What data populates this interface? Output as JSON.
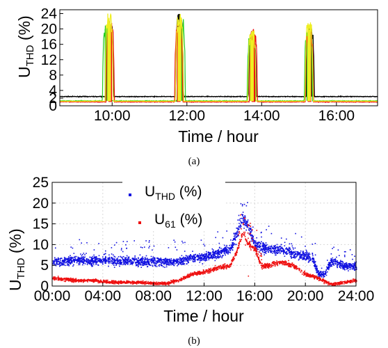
{
  "chart_data": [
    {
      "type": "line",
      "panel_label": "(a)",
      "xlabel": "Time / hour",
      "ylabel_main": "U",
      "ylabel_sub": "THD",
      "ylabel_unit": " (%)",
      "xlim": [
        8.6,
        17.1
      ],
      "ylim": [
        0,
        25
      ],
      "yticks": [
        0,
        2,
        4,
        8,
        12,
        16,
        20,
        24
      ],
      "xticks": [
        {
          "value": 10,
          "label": "10:00"
        },
        {
          "value": 12,
          "label": "12:00"
        },
        {
          "value": 14,
          "label": "14:00"
        },
        {
          "value": 16,
          "label": "16:00"
        }
      ],
      "series": [
        {
          "color": "#000000",
          "baseline": 2.4,
          "peaks": [
            {
              "t": 9.93,
              "peak": 22
            },
            {
              "t": 11.8,
              "peak": 24
            },
            {
              "t": 13.75,
              "peak": 20
            },
            {
              "t": 15.3,
              "peak": 21
            }
          ]
        },
        {
          "color": "#22cc22",
          "baseline": 1.3,
          "peaks": [
            {
              "t": 9.85,
              "peak": 21
            },
            {
              "t": 11.85,
              "peak": 23
            },
            {
              "t": 13.72,
              "peak": 19
            },
            {
              "t": 15.25,
              "peak": 20
            }
          ]
        },
        {
          "color": "#ee1111",
          "baseline": 1.0,
          "peaks": [
            {
              "t": 9.95,
              "peak": 22
            },
            {
              "t": 11.78,
              "peak": 22
            },
            {
              "t": 13.78,
              "peak": 20
            },
            {
              "t": 15.28,
              "peak": 20
            }
          ]
        },
        {
          "color": "#eeee22",
          "baseline": 1.2,
          "peaks": [
            {
              "t": 9.92,
              "peak": 24
            },
            {
              "t": 11.8,
              "peak": 24
            },
            {
              "t": 13.74,
              "peak": 20
            },
            {
              "t": 15.27,
              "peak": 22
            }
          ]
        }
      ]
    },
    {
      "type": "scatter",
      "panel_label": "(b)",
      "xlabel": "Time / hour",
      "ylabel_main": "U",
      "ylabel_sub": "THD",
      "ylabel_unit": " (%)",
      "xlim": [
        0,
        24
      ],
      "ylim": [
        0,
        25
      ],
      "yticks": [
        0,
        5,
        10,
        15,
        20,
        25
      ],
      "xticks": [
        {
          "value": 0,
          "label": "00:00"
        },
        {
          "value": 4,
          "label": "04:00"
        },
        {
          "value": 8,
          "label": "08:00"
        },
        {
          "value": 12,
          "label": "12:00"
        },
        {
          "value": 16,
          "label": "16:00"
        },
        {
          "value": 20,
          "label": "20:00"
        },
        {
          "value": 24,
          "label": "24:00"
        }
      ],
      "grid": true,
      "legend_position": "top-center",
      "series": [
        {
          "legend_main": "U",
          "legend_sub": "THD",
          "legend_unit": " (%)",
          "color": "#1010e0",
          "profile": [
            [
              0,
              6
            ],
            [
              1,
              6
            ],
            [
              2,
              6.5
            ],
            [
              3,
              6
            ],
            [
              4,
              6.5
            ],
            [
              5,
              6
            ],
            [
              6,
              6
            ],
            [
              8,
              6
            ],
            [
              10,
              6
            ],
            [
              11,
              7
            ],
            [
              12,
              7
            ],
            [
              13,
              8
            ],
            [
              14,
              9
            ],
            [
              14.5,
              12
            ],
            [
              15,
              17
            ],
            [
              15.5,
              14
            ],
            [
              16,
              10
            ],
            [
              17,
              9
            ],
            [
              18,
              9
            ],
            [
              19,
              8
            ],
            [
              20,
              7.5
            ],
            [
              20.5,
              7
            ],
            [
              21,
              3
            ],
            [
              21.5,
              3
            ],
            [
              22,
              6
            ],
            [
              23,
              5
            ],
            [
              24,
              5
            ]
          ]
        },
        {
          "legend_main": "U",
          "legend_sub": "61",
          "legend_unit": " (%)",
          "color": "#ee1010",
          "profile": [
            [
              0,
              2
            ],
            [
              1,
              1.8
            ],
            [
              2,
              1.5
            ],
            [
              3,
              1.5
            ],
            [
              4,
              1.2
            ],
            [
              5,
              1
            ],
            [
              6,
              1
            ],
            [
              7,
              1
            ],
            [
              8,
              0.8
            ],
            [
              9,
              0.8
            ],
            [
              10,
              1.5
            ],
            [
              11,
              3
            ],
            [
              12,
              3.5
            ],
            [
              13,
              4.5
            ],
            [
              14,
              5
            ],
            [
              14.5,
              8
            ],
            [
              15,
              13
            ],
            [
              15.5,
              10
            ],
            [
              16,
              9
            ],
            [
              16.5,
              5
            ],
            [
              17,
              5
            ],
            [
              18,
              6
            ],
            [
              19,
              5
            ],
            [
              20,
              3
            ],
            [
              21,
              2
            ],
            [
              22,
              0.5
            ],
            [
              23,
              1
            ],
            [
              24,
              1.5
            ]
          ]
        }
      ]
    }
  ]
}
